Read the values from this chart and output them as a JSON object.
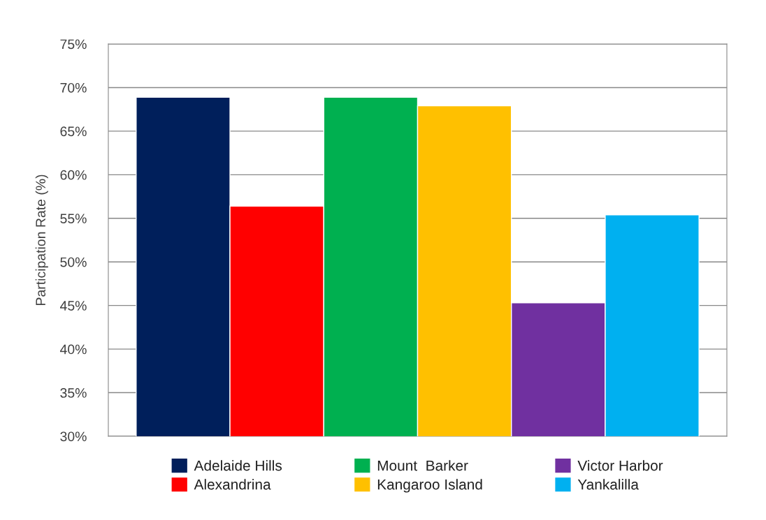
{
  "chart_data": {
    "type": "bar",
    "ylabel": "Participation Rate (%)",
    "categories": [
      null
    ],
    "series": [
      {
        "name": "Adelaide Hills",
        "color": "#001f5b",
        "values": [
          68.9
        ]
      },
      {
        "name": "Alexandrina",
        "color": "#ff0000",
        "values": [
          56.4
        ]
      },
      {
        "name": "Mount  Barker",
        "color": "#00b050",
        "values": [
          68.9
        ]
      },
      {
        "name": "Kangaroo Island",
        "color": "#ffc000",
        "values": [
          67.9
        ]
      },
      {
        "name": "Victor Harbor",
        "color": "#7030a0",
        "values": [
          45.3
        ]
      },
      {
        "name": "Yankalilla",
        "color": "#00b0f0",
        "values": [
          55.4
        ]
      }
    ],
    "ylim": [
      30,
      75
    ],
    "yticks": [
      {
        "value": 30,
        "label": "30%"
      },
      {
        "value": 35,
        "label": "35%"
      },
      {
        "value": 40,
        "label": "40%"
      },
      {
        "value": 45,
        "label": "45%"
      },
      {
        "value": 50,
        "label": "50%"
      },
      {
        "value": 55,
        "label": "55%"
      },
      {
        "value": 60,
        "label": "60%"
      },
      {
        "value": 65,
        "label": "65%"
      },
      {
        "value": 70,
        "label": "70%"
      },
      {
        "value": 75,
        "label": "75%"
      }
    ],
    "grid": "y",
    "legend": "bottom"
  }
}
